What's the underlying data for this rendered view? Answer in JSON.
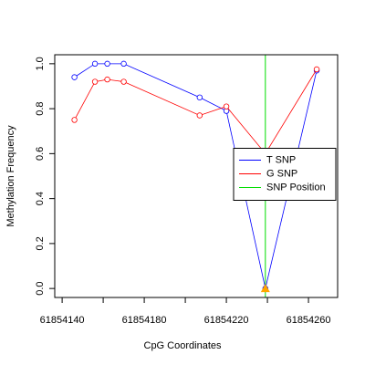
{
  "chart_data": {
    "type": "line",
    "xlabel": "CpG Coordinates",
    "ylabel": "Methylation Frequency",
    "series": [
      {
        "name": "T SNP",
        "color": "#0000ff",
        "x": [
          61854146,
          61854156,
          61854162,
          61854170,
          61854207,
          61854220,
          61854239,
          61854264
        ],
        "values": [
          0.94,
          1.0,
          1.0,
          1.0,
          0.85,
          0.79,
          0.0,
          0.97
        ]
      },
      {
        "name": "G SNP",
        "color": "#ff0000",
        "x": [
          61854146,
          61854156,
          61854162,
          61854170,
          61854207,
          61854220,
          61854239,
          61854264
        ],
        "values": [
          0.75,
          0.92,
          0.93,
          0.92,
          0.77,
          0.81,
          0.6,
          0.975
        ]
      }
    ],
    "snp": {
      "name": "SNP Position",
      "color": "#00dd00",
      "x": 61854239,
      "marker_value": 0.0,
      "marker_color": "#ffa500"
    },
    "xlim": [
      61854136.4,
      61854274.2
    ],
    "xticks": [
      61854140,
      {
        "value": 61854160,
        "label": null
      },
      61854180,
      {
        "value": 61854200,
        "label": null
      },
      61854220,
      {
        "value": 61854240,
        "label": null
      },
      61854260
    ],
    "ylim": [
      -0.04,
      1.04
    ],
    "yticks": [
      {
        "value": 0,
        "label": "0.0"
      },
      0.2,
      0.4,
      0.6,
      0.8,
      {
        "value": 1,
        "label": "1.0"
      }
    ],
    "legend": "right"
  }
}
